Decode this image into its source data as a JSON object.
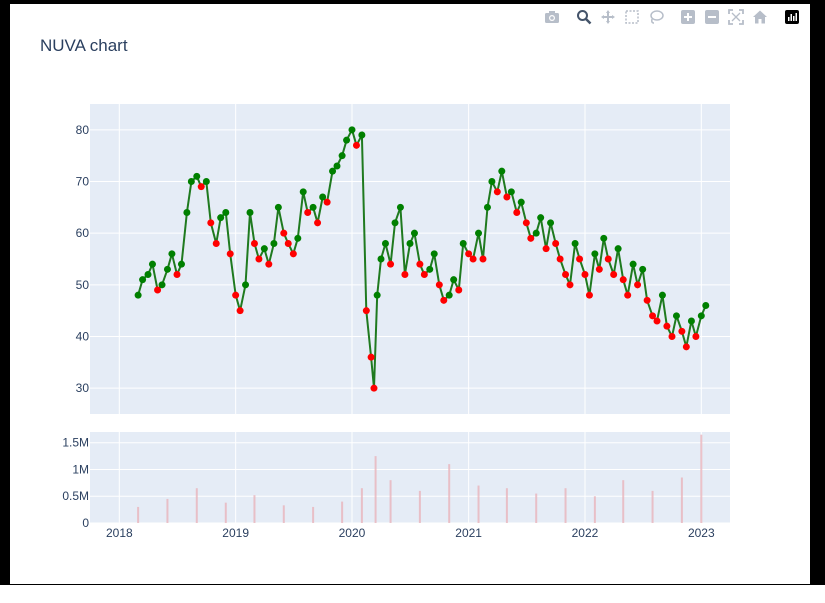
{
  "title": "NUVA chart",
  "modebar": [
    {
      "icon": "camera-icon",
      "label": "Download plot as a png"
    },
    {
      "icon": "zoom-icon",
      "label": "Zoom"
    },
    {
      "icon": "pan-icon",
      "label": "Pan"
    },
    {
      "icon": "box-select-icon",
      "label": "Box Select"
    },
    {
      "icon": "lasso-select-icon",
      "label": "Lasso Select"
    },
    {
      "icon": "zoom-in-icon",
      "label": "Zoom in"
    },
    {
      "icon": "zoom-out-icon",
      "label": "Zoom out"
    },
    {
      "icon": "autoscale-icon",
      "label": "Autoscale"
    },
    {
      "icon": "reset-axes-icon",
      "label": "Reset axes"
    },
    {
      "icon": "plotly-logo-icon",
      "label": "Produced with Plotly"
    }
  ],
  "colors": {
    "plot_bg": "#e5ecf6",
    "grid": "#ffffff",
    "text": "#2a3f5f",
    "line": "#1f7a1f",
    "up_marker": "#008000",
    "down_marker": "#ff0000",
    "volume_bar": "#e8b4bc"
  },
  "chart_data": [
    {
      "type": "line",
      "title": "NUVA chart",
      "xlabel": "",
      "ylabel": "",
      "x_ticks": [
        "2018",
        "2019",
        "2020",
        "2021",
        "2022",
        "2023"
      ],
      "y_ticks": [
        30,
        40,
        50,
        60,
        70,
        80
      ],
      "xlim": [
        "2017-10-01",
        "2023-04-01"
      ],
      "ylim": [
        25,
        85
      ],
      "grid": true,
      "markers": "green when close rises, red when close falls",
      "series": [
        {
          "x": [
            "2018-03-01",
            "2018-03-15",
            "2018-04-01",
            "2018-04-15",
            "2018-05-01",
            "2018-05-15",
            "2018-06-01",
            "2018-06-15",
            "2018-07-01",
            "2018-07-15",
            "2018-08-01",
            "2018-08-15",
            "2018-09-01",
            "2018-09-15",
            "2018-10-01",
            "2018-10-15",
            "2018-11-01",
            "2018-11-15",
            "2018-12-01",
            "2018-12-15",
            "2019-01-01",
            "2019-01-15",
            "2019-02-01",
            "2019-02-15",
            "2019-03-01",
            "2019-03-15",
            "2019-04-01",
            "2019-04-15",
            "2019-05-01",
            "2019-05-15",
            "2019-06-01",
            "2019-06-15",
            "2019-07-01",
            "2019-07-15",
            "2019-08-01",
            "2019-08-15",
            "2019-09-01",
            "2019-09-15",
            "2019-10-01",
            "2019-10-15",
            "2019-11-01",
            "2019-11-15",
            "2019-12-01",
            "2019-12-15",
            "2020-01-01",
            "2020-01-15",
            "2020-02-01",
            "2020-02-15",
            "2020-03-01",
            "2020-03-10",
            "2020-03-20",
            "2020-04-01",
            "2020-04-15",
            "2020-05-01",
            "2020-05-15",
            "2020-06-01",
            "2020-06-15",
            "2020-07-01",
            "2020-07-15",
            "2020-08-01",
            "2020-08-15",
            "2020-09-01",
            "2020-09-15",
            "2020-10-01",
            "2020-10-15",
            "2020-11-01",
            "2020-11-15",
            "2020-12-01",
            "2020-12-15",
            "2021-01-01",
            "2021-01-15",
            "2021-02-01",
            "2021-02-15",
            "2021-03-01",
            "2021-03-15",
            "2021-04-01",
            "2021-04-15",
            "2021-05-01",
            "2021-05-15",
            "2021-06-01",
            "2021-06-15",
            "2021-07-01",
            "2021-07-15",
            "2021-08-01",
            "2021-08-15",
            "2021-09-01",
            "2021-09-15",
            "2021-10-01",
            "2021-10-15",
            "2021-11-01",
            "2021-11-15",
            "2021-12-01",
            "2021-12-15",
            "2022-01-01",
            "2022-01-15",
            "2022-02-01",
            "2022-02-15",
            "2022-03-01",
            "2022-03-15",
            "2022-04-01",
            "2022-04-15",
            "2022-05-01",
            "2022-05-15",
            "2022-06-01",
            "2022-06-15",
            "2022-07-01",
            "2022-07-15",
            "2022-08-01",
            "2022-08-15",
            "2022-09-01",
            "2022-09-15",
            "2022-10-01",
            "2022-10-15",
            "2022-11-01",
            "2022-11-15",
            "2022-12-01",
            "2022-12-15",
            "2023-01-01",
            "2023-01-15"
          ],
          "y": [
            48,
            51,
            52,
            54,
            49,
            50,
            53,
            56,
            52,
            54,
            64,
            70,
            71,
            69,
            70,
            62,
            58,
            63,
            64,
            56,
            48,
            45,
            50,
            64,
            58,
            55,
            57,
            54,
            58,
            65,
            60,
            58,
            56,
            59,
            68,
            64,
            65,
            62,
            67,
            66,
            72,
            73,
            75,
            78,
            80,
            77,
            79,
            45,
            36,
            30,
            48,
            55,
            58,
            54,
            62,
            65,
            52,
            58,
            60,
            54,
            52,
            53,
            56,
            50,
            47,
            48,
            51,
            49,
            58,
            56,
            55,
            60,
            55,
            65,
            70,
            68,
            72,
            67,
            68,
            64,
            66,
            62,
            59,
            60,
            63,
            57,
            62,
            58,
            55,
            52,
            50,
            58,
            55,
            52,
            48,
            56,
            53,
            59,
            55,
            52,
            57,
            51,
            48,
            54,
            50,
            53,
            47,
            44,
            43,
            48,
            42,
            40,
            44,
            41,
            38,
            43,
            40,
            44,
            46
          ]
        }
      ]
    },
    {
      "type": "bar",
      "title": "",
      "xlabel": "",
      "ylabel": "",
      "x_ticks": [
        "2018",
        "2019",
        "2020",
        "2021",
        "2022",
        "2023"
      ],
      "y_ticks": [
        "0",
        "0.5M",
        "1M",
        "1.5M"
      ],
      "ylim": [
        0,
        1700000
      ],
      "series": [
        {
          "x": [
            "2018-03-01",
            "2018-06-01",
            "2018-09-01",
            "2018-12-01",
            "2019-03-01",
            "2019-06-01",
            "2019-09-01",
            "2019-12-01",
            "2020-02-01",
            "2020-03-15",
            "2020-05-01",
            "2020-08-01",
            "2020-11-01",
            "2021-02-01",
            "2021-05-01",
            "2021-08-01",
            "2021-11-01",
            "2022-02-01",
            "2022-05-01",
            "2022-08-01",
            "2022-11-01",
            "2023-01-01"
          ],
          "values": [
            300000,
            450000,
            650000,
            380000,
            520000,
            330000,
            300000,
            400000,
            650000,
            1250000,
            800000,
            600000,
            1100000,
            700000,
            650000,
            550000,
            650000,
            500000,
            800000,
            600000,
            850000,
            1650000
          ]
        }
      ]
    }
  ]
}
